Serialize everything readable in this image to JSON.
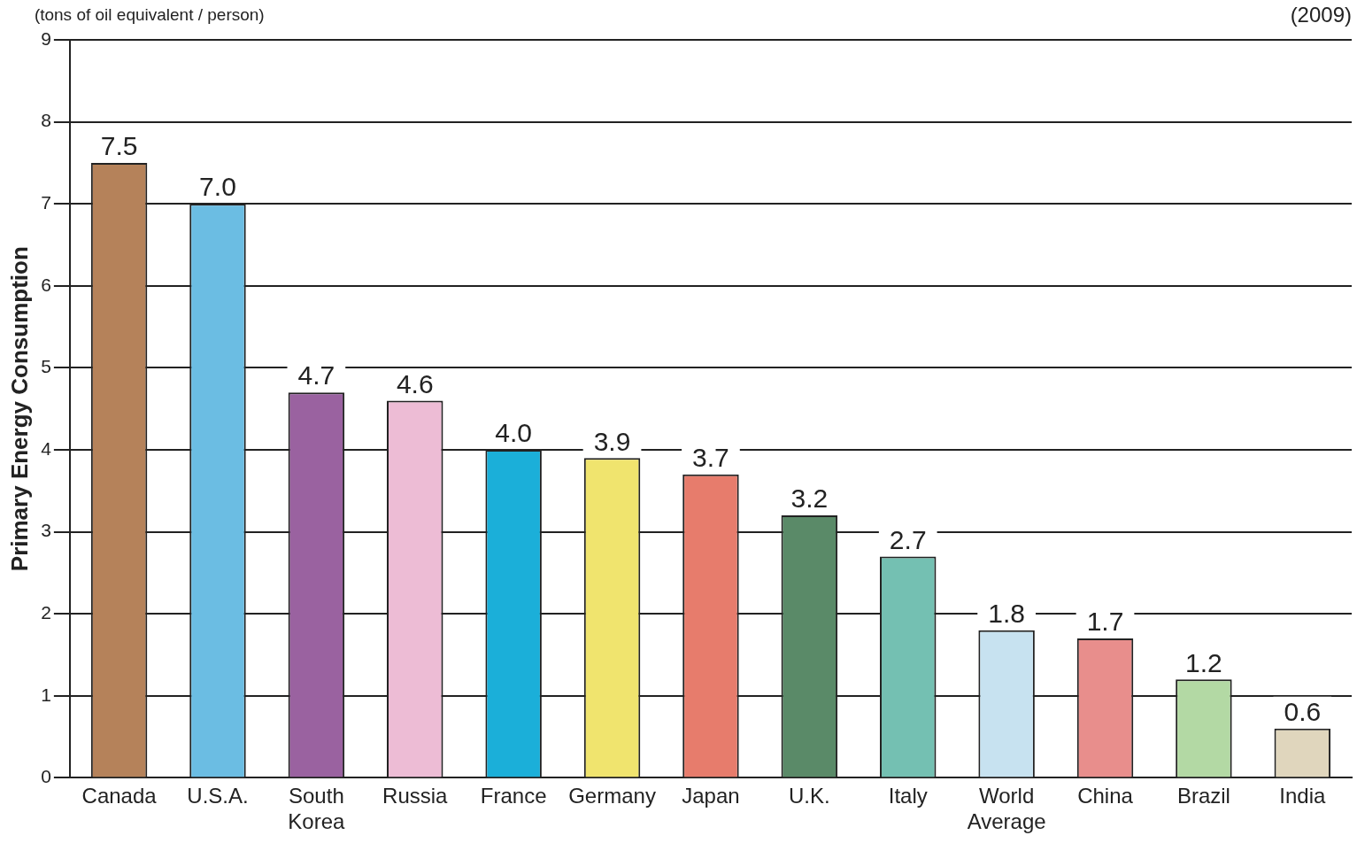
{
  "chart_data": {
    "type": "bar",
    "ylabel": "Primary Energy Consumption",
    "annotations": [
      "(tons of oil equivalent / person)",
      "(2009)"
    ],
    "categories": [
      "Canada",
      "U.S.A.",
      "South Korea",
      "Russia",
      "France",
      "Germany",
      "Japan",
      "U.K.",
      "Italy",
      "World Average",
      "China",
      "Brazil",
      "India"
    ],
    "values": [
      7.5,
      7.0,
      4.7,
      4.6,
      4.0,
      3.9,
      3.7,
      3.2,
      2.7,
      1.8,
      1.7,
      1.2,
      0.6
    ],
    "colors": [
      "#b5825a",
      "#6bbde3",
      "#9a62a0",
      "#edbcd5",
      "#1bafd9",
      "#f0e46e",
      "#e77c6c",
      "#5a8a68",
      "#74c0b2",
      "#c7e2f0",
      "#e88e8c",
      "#b3d9a4",
      "#e0d6bd"
    ],
    "value_labels": [
      "7.5",
      "7.0",
      "4.7",
      "4.6",
      "4.0",
      "3.9",
      "3.7",
      "3.2",
      "2.7",
      "1.8",
      "1.7",
      "1.2",
      "0.6"
    ],
    "ylim": [
      0,
      9
    ],
    "yticks": [
      0,
      1,
      2,
      3,
      4,
      5,
      6,
      7,
      8,
      9
    ],
    "grid": "y",
    "legend": false
  }
}
